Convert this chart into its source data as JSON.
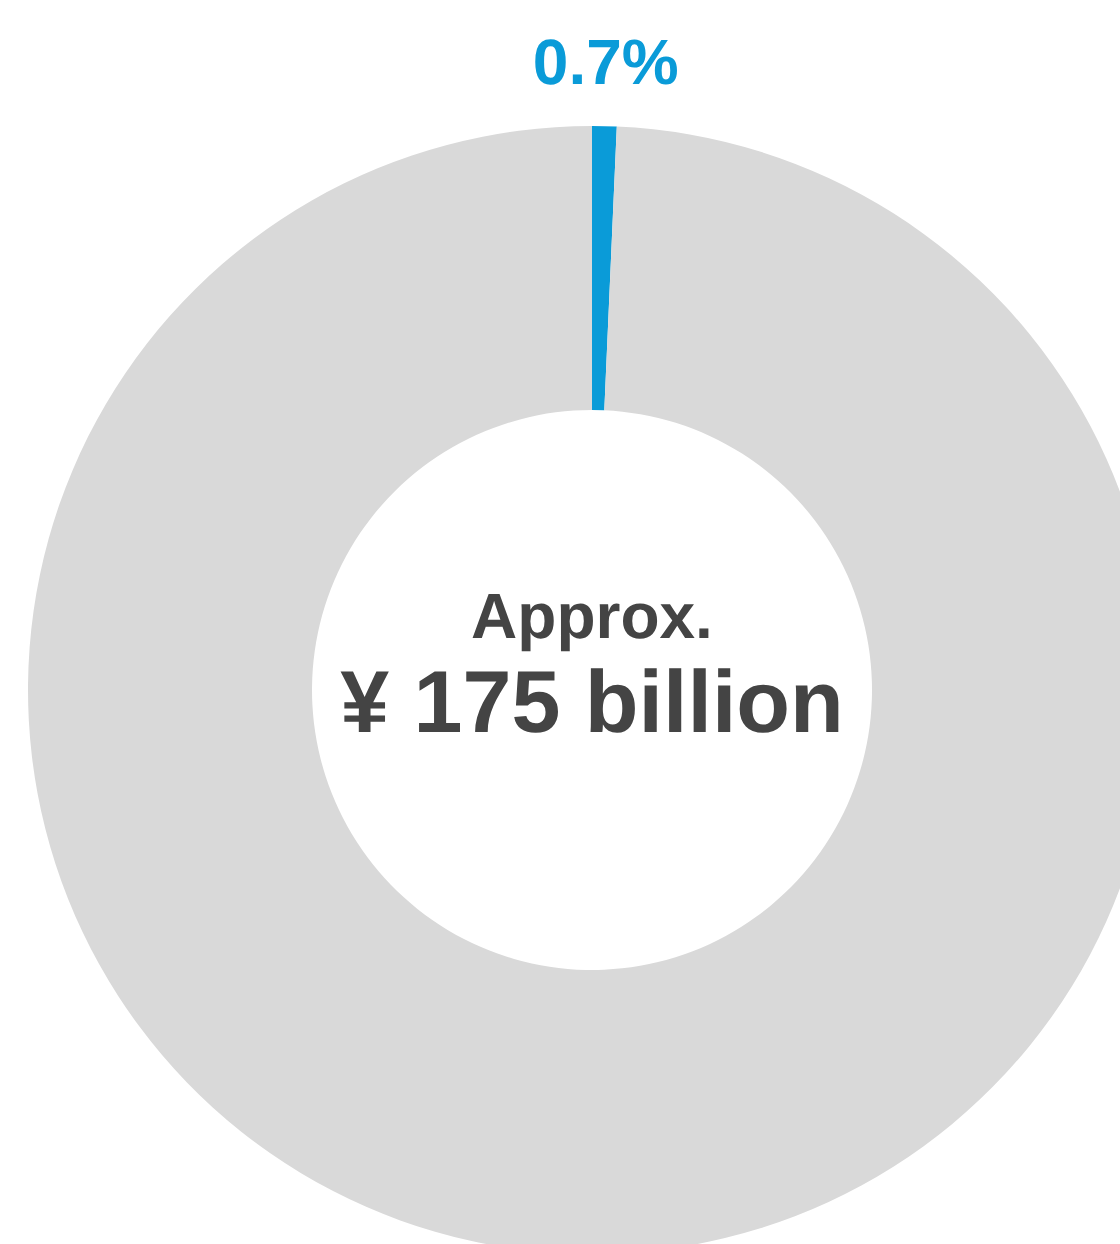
{
  "chart_data": {
    "type": "donut",
    "categories": [
      null,
      null
    ],
    "values": [
      0.7,
      99.3
    ],
    "colors": [
      "#0a9bd8",
      "#d9d9d9"
    ],
    "value_labels": [
      "0.7%",
      null
    ],
    "annotations": [
      "Approx.",
      "¥ 175 billion"
    ],
    "legend": false
  }
}
